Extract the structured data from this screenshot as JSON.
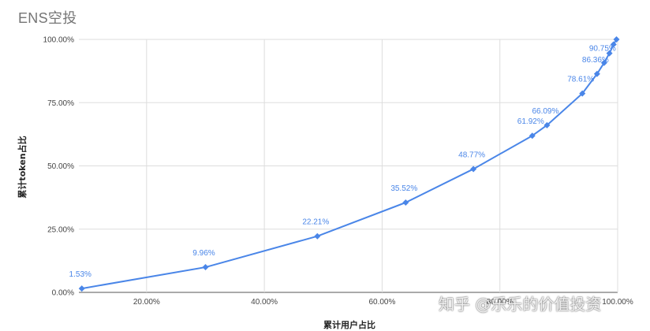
{
  "chart_data": {
    "type": "line",
    "title": "ENS空投",
    "xlabel": "累计用户占比",
    "ylabel": "累计token占比",
    "xlim": [
      8.5,
      100
    ],
    "ylim": [
      0,
      100
    ],
    "x_ticks": [
      "20.00%",
      "40.00%",
      "60.00%",
      "80.00%",
      "100.00%"
    ],
    "x_tick_values": [
      20,
      40,
      60,
      80,
      100
    ],
    "y_ticks": [
      "0.00%",
      "25.00%",
      "50.00%",
      "75.00%",
      "100.00%"
    ],
    "y_tick_values": [
      0,
      25,
      50,
      75,
      100
    ],
    "grid": true,
    "legend": "none",
    "color": "#4a86e8",
    "series": [
      {
        "x": [
          9.0,
          30.0,
          49.0,
          64.0,
          75.5,
          85.5,
          88.0,
          94.0,
          96.5,
          97.7,
          98.6,
          99.3,
          99.8
        ],
        "values": [
          1.53,
          9.96,
          22.21,
          35.52,
          48.77,
          61.92,
          66.09,
          78.61,
          86.36,
          90.75,
          94.5,
          98.0,
          100.0
        ],
        "labels": [
          "1.53%",
          "9.96%",
          "22.21%",
          "35.52%",
          "48.77%",
          "61.92%",
          "66.09%",
          "78.61%",
          "86.36%",
          "90.75%",
          "",
          "",
          ""
        ]
      }
    ]
  },
  "watermark": "知乎 @乐乐的价值投资"
}
